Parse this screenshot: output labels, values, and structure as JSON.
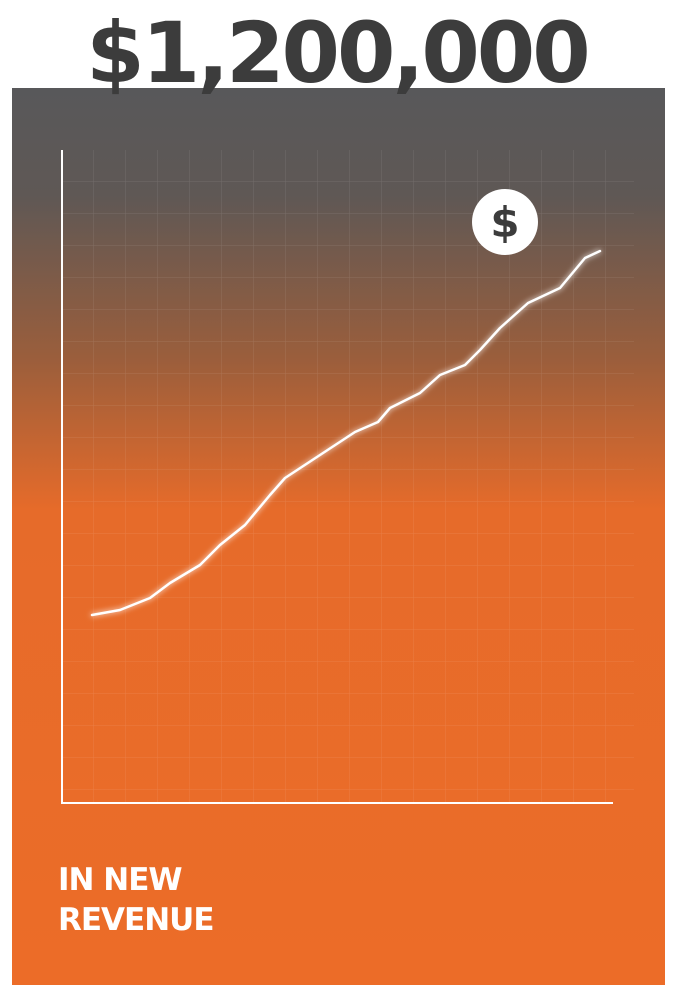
{
  "headline": "$1,200,000",
  "icon": "$",
  "caption": [
    "IN NEW",
    "REVENUE"
  ]
}
